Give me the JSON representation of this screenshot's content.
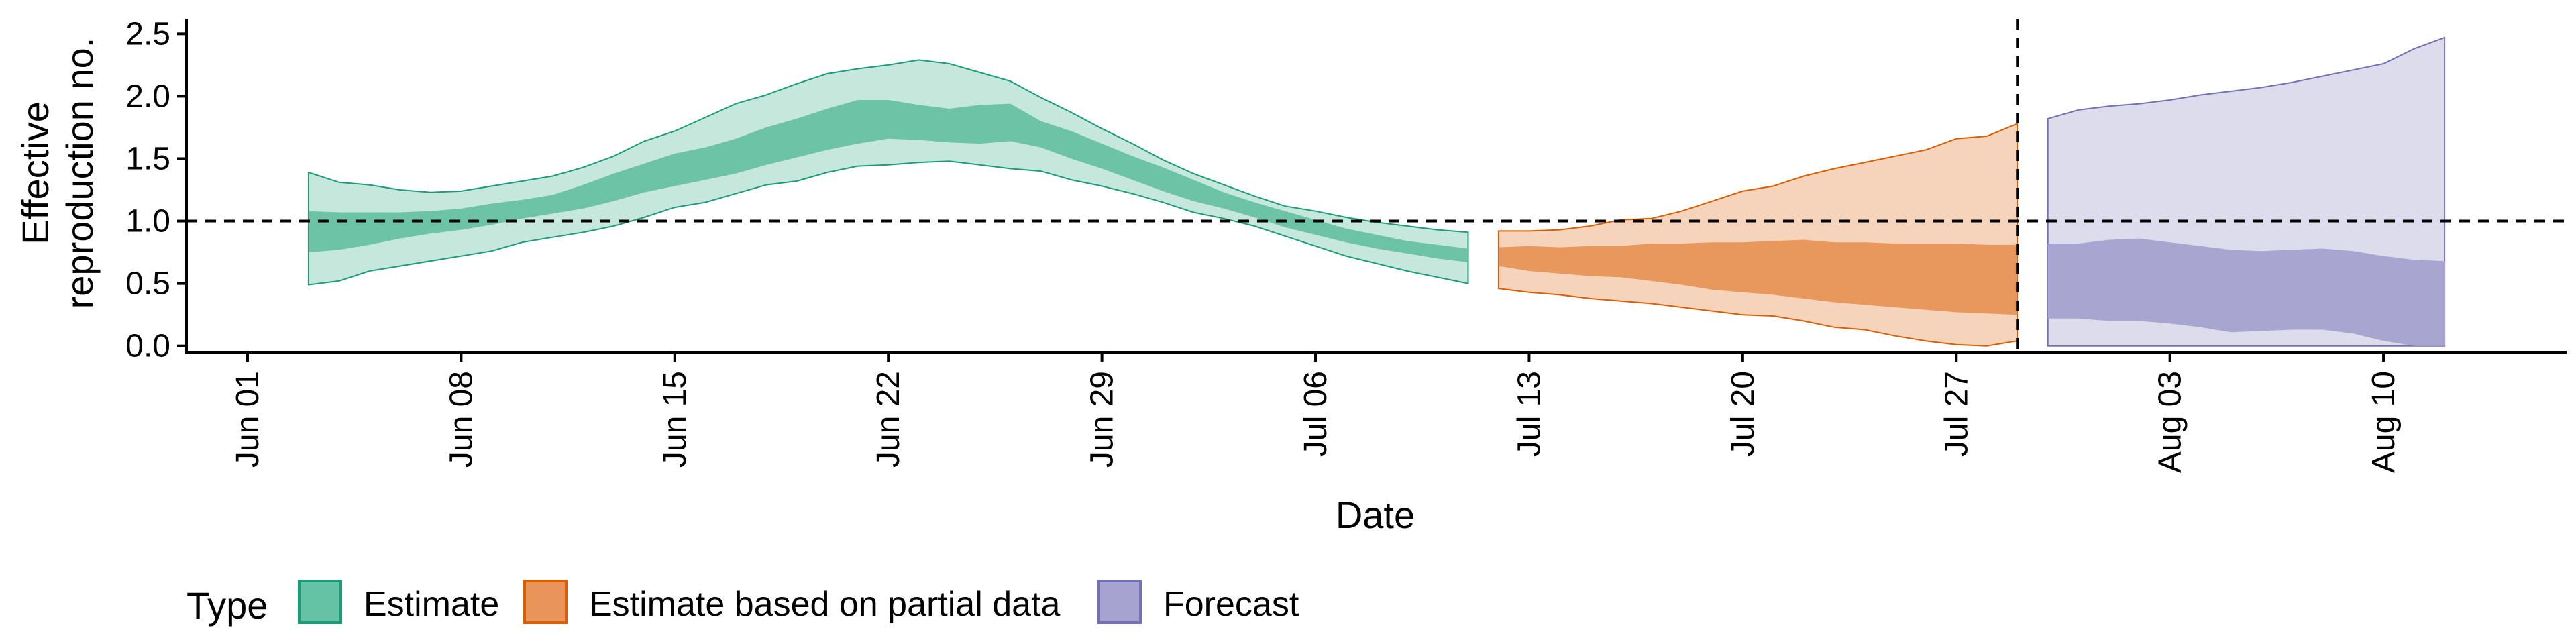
{
  "chart_data": {
    "type": "area",
    "title": "",
    "xlabel": "Date",
    "ylabel_lines": [
      "Effective",
      "reproduction no."
    ],
    "xlim": [
      "2020-05-30",
      "2020-08-16"
    ],
    "ylim": [
      -0.05,
      2.62
    ],
    "yticks": [
      0.0,
      0.5,
      1.0,
      1.5,
      2.0,
      2.5
    ],
    "ytick_labels": [
      "0.0",
      "0.5",
      "1.0",
      "1.5",
      "2.0",
      "2.5"
    ],
    "xticks": [
      "2020-06-01",
      "2020-06-08",
      "2020-06-15",
      "2020-06-22",
      "2020-06-29",
      "2020-07-06",
      "2020-07-13",
      "2020-07-20",
      "2020-07-27",
      "2020-08-03",
      "2020-08-10"
    ],
    "xtick_labels": [
      "Jun 01",
      "Jun 08",
      "Jun 15",
      "Jun 22",
      "Jun 29",
      "Jul 06",
      "Jul 13",
      "Jul 20",
      "Jul 27",
      "Aug 03",
      "Aug 10"
    ],
    "reference_line_y": 1.0,
    "reference_line_x": "2020-07-29",
    "grid": false,
    "legend": {
      "title": "Type",
      "position": "bottom",
      "entries": [
        {
          "label": "Estimate",
          "fill": "#66c2a5",
          "stroke": "#1b9e77"
        },
        {
          "label": "Estimate based on partial data",
          "fill": "#e8945a",
          "stroke": "#d95f02"
        },
        {
          "label": "Forecast",
          "fill": "#a6a3d1",
          "stroke": "#7570b3"
        }
      ]
    },
    "series": [
      {
        "name": "Estimate",
        "outer_fill": "#c6e7dc",
        "inner_fill": "#6cc3a6",
        "stroke": "#1b9e77",
        "dates": [
          "2020-06-03",
          "2020-06-04",
          "2020-06-05",
          "2020-06-06",
          "2020-06-07",
          "2020-06-08",
          "2020-06-09",
          "2020-06-10",
          "2020-06-11",
          "2020-06-12",
          "2020-06-13",
          "2020-06-14",
          "2020-06-15",
          "2020-06-16",
          "2020-06-17",
          "2020-06-18",
          "2020-06-19",
          "2020-06-20",
          "2020-06-21",
          "2020-06-22",
          "2020-06-23",
          "2020-06-24",
          "2020-06-25",
          "2020-06-26",
          "2020-06-27",
          "2020-06-28",
          "2020-06-29",
          "2020-06-30",
          "2020-07-01",
          "2020-07-02",
          "2020-07-03",
          "2020-07-04",
          "2020-07-05",
          "2020-07-06",
          "2020-07-07",
          "2020-07-08",
          "2020-07-09",
          "2020-07-10",
          "2020-07-11"
        ],
        "lower90": [
          0.49,
          0.52,
          0.6,
          0.64,
          0.68,
          0.72,
          0.76,
          0.83,
          0.87,
          0.91,
          0.96,
          1.03,
          1.11,
          1.15,
          1.22,
          1.29,
          1.32,
          1.39,
          1.44,
          1.45,
          1.47,
          1.48,
          1.45,
          1.42,
          1.4,
          1.33,
          1.28,
          1.22,
          1.15,
          1.07,
          1.02,
          0.96,
          0.88,
          0.8,
          0.72,
          0.66,
          0.6,
          0.55,
          0.5
        ],
        "upper90": [
          1.39,
          1.31,
          1.29,
          1.25,
          1.23,
          1.24,
          1.28,
          1.32,
          1.36,
          1.43,
          1.52,
          1.64,
          1.72,
          1.83,
          1.94,
          2.01,
          2.1,
          2.18,
          2.22,
          2.25,
          2.29,
          2.26,
          2.19,
          2.12,
          1.99,
          1.87,
          1.74,
          1.62,
          1.49,
          1.38,
          1.29,
          1.2,
          1.12,
          1.08,
          1.03,
          0.99,
          0.96,
          0.93,
          0.91
        ],
        "lower50": [
          0.75,
          0.77,
          0.81,
          0.86,
          0.9,
          0.93,
          0.97,
          1.02,
          1.06,
          1.1,
          1.16,
          1.23,
          1.28,
          1.33,
          1.38,
          1.45,
          1.51,
          1.57,
          1.62,
          1.66,
          1.65,
          1.63,
          1.62,
          1.64,
          1.59,
          1.5,
          1.42,
          1.33,
          1.24,
          1.16,
          1.1,
          1.03,
          0.95,
          0.89,
          0.83,
          0.78,
          0.74,
          0.7,
          0.67
        ],
        "upper50": [
          1.08,
          1.07,
          1.07,
          1.07,
          1.08,
          1.1,
          1.14,
          1.17,
          1.21,
          1.29,
          1.38,
          1.46,
          1.54,
          1.59,
          1.66,
          1.75,
          1.82,
          1.9,
          1.97,
          1.97,
          1.93,
          1.9,
          1.93,
          1.94,
          1.8,
          1.72,
          1.62,
          1.52,
          1.43,
          1.33,
          1.23,
          1.15,
          1.08,
          1.01,
          0.94,
          0.89,
          0.84,
          0.81,
          0.78
        ]
      },
      {
        "name": "Estimate based on partial data",
        "outer_fill": "#f6d3bb",
        "inner_fill": "#e8975d",
        "stroke": "#d95f02",
        "dates": [
          "2020-07-12",
          "2020-07-13",
          "2020-07-14",
          "2020-07-15",
          "2020-07-16",
          "2020-07-17",
          "2020-07-18",
          "2020-07-19",
          "2020-07-20",
          "2020-07-21",
          "2020-07-22",
          "2020-07-23",
          "2020-07-24",
          "2020-07-25",
          "2020-07-26",
          "2020-07-27",
          "2020-07-28",
          "2020-07-29"
        ],
        "lower90": [
          0.46,
          0.43,
          0.41,
          0.38,
          0.36,
          0.34,
          0.31,
          0.28,
          0.25,
          0.24,
          0.2,
          0.15,
          0.13,
          0.08,
          0.04,
          0.01,
          0.0,
          0.04
        ],
        "upper90": [
          0.92,
          0.92,
          0.93,
          0.96,
          1.01,
          1.02,
          1.08,
          1.16,
          1.24,
          1.28,
          1.36,
          1.42,
          1.47,
          1.52,
          1.57,
          1.66,
          1.68,
          1.78
        ],
        "lower50": [
          0.64,
          0.6,
          0.58,
          0.56,
          0.55,
          0.52,
          0.49,
          0.45,
          0.43,
          0.41,
          0.38,
          0.35,
          0.33,
          0.31,
          0.29,
          0.27,
          0.26,
          0.25
        ],
        "upper50": [
          0.79,
          0.8,
          0.79,
          0.8,
          0.8,
          0.82,
          0.82,
          0.83,
          0.83,
          0.84,
          0.85,
          0.83,
          0.83,
          0.82,
          0.82,
          0.82,
          0.81,
          0.81
        ]
      },
      {
        "name": "Forecast",
        "outer_fill": "#dddcec",
        "inner_fill": "#a9a5d1",
        "stroke": "#7570b3",
        "dates": [
          "2020-07-30",
          "2020-07-31",
          "2020-08-01",
          "2020-08-02",
          "2020-08-03",
          "2020-08-04",
          "2020-08-05",
          "2020-08-06",
          "2020-08-07",
          "2020-08-08",
          "2020-08-09",
          "2020-08-10",
          "2020-08-11",
          "2020-08-12"
        ],
        "lower90": [
          0.0,
          0.0,
          0.0,
          0.0,
          0.0,
          0.0,
          0.0,
          0.0,
          0.0,
          0.0,
          0.0,
          0.0,
          0.0,
          0.0
        ],
        "upper90": [
          1.82,
          1.89,
          1.92,
          1.94,
          1.97,
          2.01,
          2.04,
          2.07,
          2.11,
          2.16,
          2.21,
          2.26,
          2.38,
          2.47
        ],
        "lower50": [
          0.22,
          0.22,
          0.2,
          0.2,
          0.18,
          0.15,
          0.11,
          0.12,
          0.13,
          0.13,
          0.1,
          0.04,
          0.0,
          0.0
        ],
        "upper50": [
          0.82,
          0.82,
          0.85,
          0.86,
          0.83,
          0.8,
          0.77,
          0.76,
          0.77,
          0.78,
          0.76,
          0.72,
          0.69,
          0.68
        ]
      }
    ]
  }
}
